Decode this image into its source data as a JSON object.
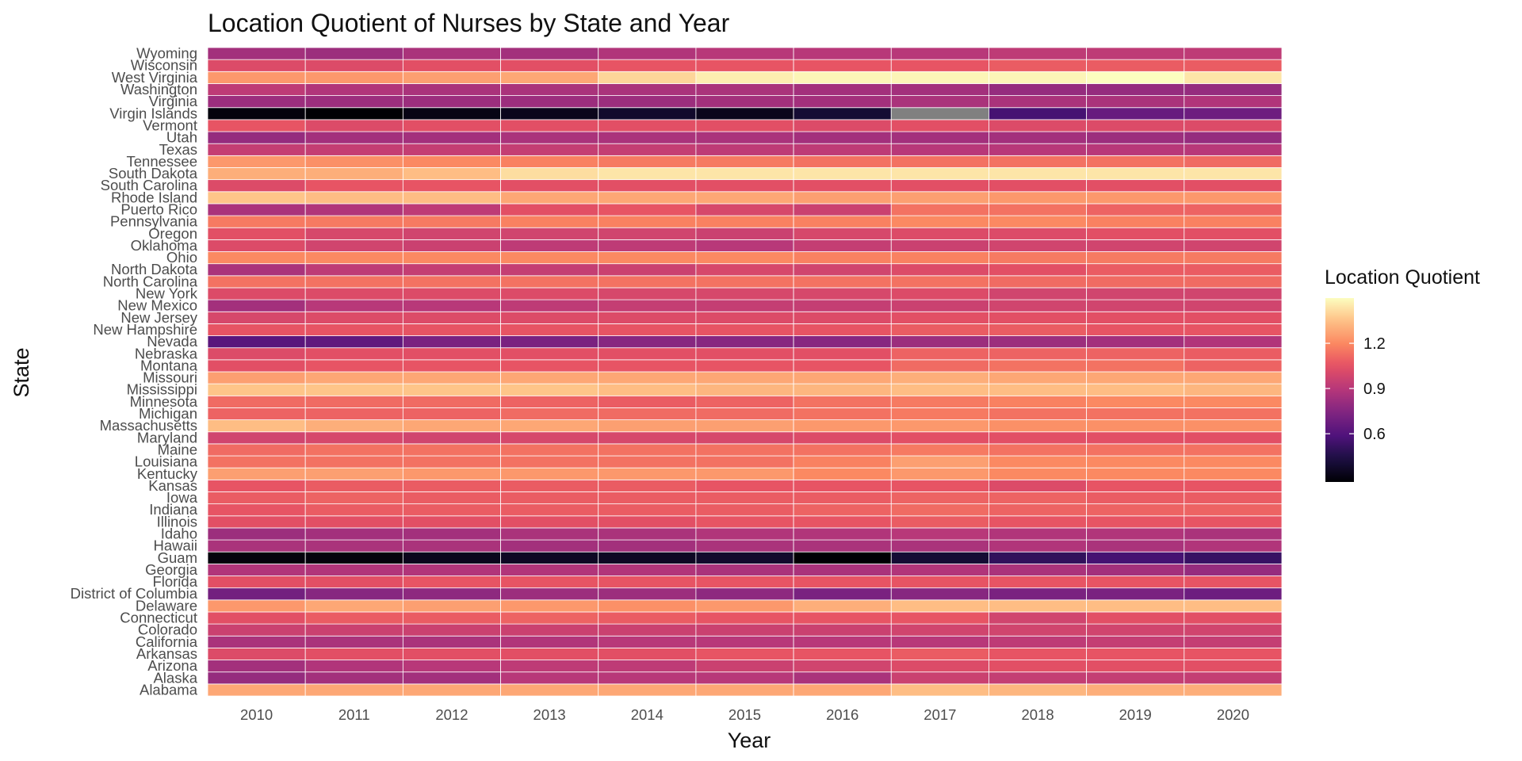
{
  "chart_data": {
    "type": "heatmap",
    "title": "Location Quotient of Nurses by State and Year",
    "xlabel": "Year",
    "ylabel": "State",
    "x": [
      "2010",
      "2011",
      "2012",
      "2013",
      "2014",
      "2015",
      "2016",
      "2017",
      "2018",
      "2019",
      "2020"
    ],
    "y": [
      "Alabama",
      "Alaska",
      "Arizona",
      "Arkansas",
      "California",
      "Colorado",
      "Connecticut",
      "Delaware",
      "District of Columbia",
      "Florida",
      "Georgia",
      "Guam",
      "Hawaii",
      "Idaho",
      "Illinois",
      "Indiana",
      "Iowa",
      "Kansas",
      "Kentucky",
      "Louisiana",
      "Maine",
      "Maryland",
      "Massachusetts",
      "Michigan",
      "Minnesota",
      "Mississippi",
      "Missouri",
      "Montana",
      "Nebraska",
      "Nevada",
      "New Hampshire",
      "New Jersey",
      "New Mexico",
      "New York",
      "North Carolina",
      "North Dakota",
      "Ohio",
      "Oklahoma",
      "Oregon",
      "Pennsylvania",
      "Puerto Rico",
      "Rhode Island",
      "South Carolina",
      "South Dakota",
      "Tennessee",
      "Texas",
      "Utah",
      "Vermont",
      "Virgin Islands",
      "Virginia",
      "Washington",
      "West Virginia",
      "Wisconsin",
      "Wyoming"
    ],
    "values": [
      [
        1.28,
        1.28,
        1.28,
        1.28,
        1.28,
        1.28,
        1.28,
        1.34,
        1.32,
        1.3,
        1.3
      ],
      [
        0.8,
        0.84,
        0.84,
        0.9,
        0.9,
        0.9,
        0.86,
        0.96,
        0.94,
        0.94,
        0.94
      ],
      [
        0.84,
        0.88,
        0.9,
        0.92,
        0.92,
        0.96,
        0.98,
        1.02,
        1.04,
        1.04,
        1.04
      ],
      [
        1.02,
        1.04,
        1.04,
        1.04,
        1.04,
        1.06,
        1.06,
        1.08,
        1.06,
        1.06,
        1.06
      ],
      [
        0.86,
        0.86,
        0.86,
        0.88,
        0.9,
        0.9,
        0.9,
        0.9,
        0.92,
        0.94,
        0.94
      ],
      [
        0.96,
        0.96,
        0.96,
        0.96,
        0.96,
        0.96,
        0.96,
        0.98,
        0.98,
        0.98,
        0.98
      ],
      [
        1.04,
        1.08,
        1.08,
        1.1,
        1.08,
        1.06,
        1.06,
        1.06,
        0.98,
        1.04,
        1.04
      ],
      [
        1.24,
        1.28,
        1.26,
        1.24,
        1.22,
        1.24,
        1.3,
        1.34,
        1.34,
        1.34,
        1.34
      ],
      [
        0.7,
        0.76,
        0.78,
        0.82,
        0.82,
        0.78,
        0.72,
        0.76,
        0.72,
        0.72,
        0.68
      ],
      [
        1.04,
        1.04,
        1.06,
        1.06,
        1.06,
        1.06,
        1.06,
        1.06,
        1.06,
        1.06,
        1.06
      ],
      [
        0.88,
        0.88,
        0.88,
        0.88,
        0.88,
        0.86,
        0.86,
        0.88,
        0.86,
        0.84,
        0.8
      ],
      [
        0.3,
        0.3,
        0.34,
        0.36,
        0.36,
        0.38,
        0.28,
        0.4,
        0.5,
        0.56,
        0.52
      ],
      [
        0.86,
        0.86,
        0.86,
        0.84,
        0.84,
        0.86,
        0.86,
        0.86,
        0.88,
        0.86,
        0.88
      ],
      [
        0.82,
        0.84,
        0.84,
        0.86,
        0.86,
        0.88,
        0.88,
        0.9,
        0.88,
        0.88,
        0.86
      ],
      [
        1.04,
        1.04,
        1.04,
        1.04,
        1.04,
        1.06,
        1.06,
        1.08,
        1.06,
        1.06,
        1.06
      ],
      [
        1.06,
        1.08,
        1.08,
        1.08,
        1.08,
        1.08,
        1.1,
        1.12,
        1.1,
        1.1,
        1.1
      ],
      [
        1.08,
        1.1,
        1.08,
        1.08,
        1.08,
        1.08,
        1.08,
        1.1,
        1.1,
        1.08,
        1.08
      ],
      [
        1.06,
        1.08,
        1.08,
        1.08,
        1.08,
        1.06,
        1.06,
        1.06,
        1.02,
        1.06,
        1.06
      ],
      [
        1.26,
        1.26,
        1.24,
        1.24,
        1.24,
        1.24,
        1.2,
        1.24,
        1.2,
        1.2,
        1.2
      ],
      [
        1.14,
        1.14,
        1.14,
        1.14,
        1.14,
        1.14,
        1.18,
        1.26,
        1.2,
        1.2,
        1.2
      ],
      [
        1.12,
        1.14,
        1.14,
        1.14,
        1.14,
        1.14,
        1.14,
        1.16,
        1.14,
        1.14,
        1.14
      ],
      [
        0.98,
        1.0,
        0.98,
        1.0,
        1.0,
        1.0,
        1.02,
        1.04,
        1.04,
        1.04,
        1.04
      ],
      [
        1.34,
        1.3,
        1.28,
        1.28,
        1.26,
        1.26,
        1.24,
        1.24,
        1.22,
        1.22,
        1.22
      ],
      [
        1.1,
        1.1,
        1.1,
        1.12,
        1.12,
        1.12,
        1.14,
        1.16,
        1.14,
        1.14,
        1.14
      ],
      [
        1.12,
        1.12,
        1.12,
        1.1,
        1.08,
        1.1,
        1.14,
        1.16,
        1.18,
        1.2,
        1.2
      ],
      [
        1.36,
        1.36,
        1.36,
        1.36,
        1.34,
        1.32,
        1.32,
        1.34,
        1.34,
        1.34,
        1.32
      ],
      [
        1.26,
        1.28,
        1.28,
        1.28,
        1.28,
        1.28,
        1.28,
        1.3,
        1.28,
        1.28,
        1.28
      ],
      [
        1.04,
        1.06,
        1.06,
        1.06,
        1.06,
        1.06,
        1.06,
        1.12,
        1.14,
        1.14,
        1.1
      ],
      [
        1.02,
        1.04,
        1.04,
        1.04,
        1.04,
        1.04,
        1.04,
        1.1,
        1.1,
        1.1,
        1.08
      ],
      [
        0.62,
        0.64,
        0.72,
        0.72,
        0.76,
        0.76,
        0.76,
        0.82,
        0.82,
        0.84,
        0.88
      ],
      [
        1.06,
        1.06,
        1.06,
        1.06,
        1.06,
        1.06,
        1.06,
        1.08,
        1.08,
        1.06,
        1.06
      ],
      [
        1.0,
        1.02,
        1.02,
        1.02,
        1.02,
        1.02,
        1.02,
        1.04,
        1.04,
        1.04,
        1.04
      ],
      [
        0.84,
        0.9,
        0.9,
        0.92,
        0.94,
        0.94,
        0.94,
        0.96,
        0.98,
        0.98,
        0.98
      ],
      [
        1.02,
        1.02,
        1.02,
        1.02,
        1.0,
        1.0,
        1.0,
        1.02,
        0.98,
        0.98,
        0.98
      ],
      [
        1.14,
        1.14,
        1.14,
        1.14,
        1.14,
        1.14,
        1.14,
        1.14,
        1.12,
        1.12,
        1.12
      ],
      [
        0.86,
        0.92,
        0.94,
        0.94,
        0.96,
        1.0,
        0.98,
        1.02,
        1.04,
        1.08,
        1.08
      ],
      [
        1.2,
        1.2,
        1.2,
        1.2,
        1.2,
        1.2,
        1.18,
        1.18,
        1.16,
        1.16,
        1.16
      ],
      [
        1.02,
        0.98,
        0.96,
        0.92,
        0.92,
        0.9,
        0.94,
        0.96,
        0.98,
        0.98,
        0.98
      ],
      [
        1.04,
        1.0,
        0.98,
        0.98,
        0.98,
        0.96,
        1.0,
        1.02,
        1.02,
        1.04,
        1.04
      ],
      [
        1.16,
        1.16,
        1.16,
        1.18,
        1.18,
        1.18,
        1.18,
        1.2,
        1.2,
        1.18,
        1.18
      ],
      [
        0.86,
        0.88,
        0.92,
        1.04,
        1.06,
        1.0,
        0.96,
        1.14,
        1.14,
        1.1,
        1.1
      ],
      [
        1.36,
        1.34,
        1.34,
        1.28,
        1.28,
        1.28,
        1.26,
        1.26,
        1.24,
        1.24,
        1.24
      ],
      [
        1.02,
        1.06,
        1.06,
        1.04,
        1.04,
        1.04,
        1.04,
        1.04,
        1.04,
        1.04,
        1.04
      ],
      [
        1.3,
        1.3,
        1.34,
        1.42,
        1.44,
        1.44,
        1.44,
        1.44,
        1.44,
        1.44,
        1.44
      ],
      [
        1.24,
        1.22,
        1.2,
        1.18,
        1.16,
        1.16,
        1.14,
        1.14,
        1.14,
        1.14,
        1.12
      ],
      [
        0.94,
        0.94,
        0.94,
        0.94,
        0.94,
        0.92,
        0.92,
        0.9,
        0.9,
        0.9,
        0.9
      ],
      [
        0.8,
        0.84,
        0.84,
        0.86,
        0.86,
        0.86,
        0.84,
        0.84,
        0.84,
        0.82,
        0.8
      ],
      [
        1.06,
        1.02,
        1.04,
        1.04,
        1.04,
        1.04,
        1.02,
        1.04,
        1.02,
        1.02,
        1.02
      ],
      [
        0.3,
        0.28,
        0.32,
        0.34,
        0.38,
        0.34,
        0.4,
        null,
        0.56,
        0.66,
        0.68
      ],
      [
        0.82,
        0.82,
        0.82,
        0.82,
        0.82,
        0.84,
        0.84,
        0.86,
        0.86,
        0.86,
        0.88
      ],
      [
        0.92,
        0.88,
        0.86,
        0.86,
        0.86,
        0.86,
        0.84,
        0.84,
        0.8,
        0.8,
        0.8
      ],
      [
        1.24,
        1.24,
        1.26,
        1.28,
        1.4,
        1.46,
        1.48,
        1.48,
        1.48,
        1.5,
        1.44
      ],
      [
        1.02,
        1.02,
        1.04,
        1.04,
        1.06,
        1.06,
        1.06,
        1.06,
        1.08,
        1.08,
        1.08
      ],
      [
        0.84,
        0.82,
        0.86,
        0.84,
        0.88,
        0.9,
        0.9,
        0.9,
        0.92,
        0.92,
        0.92
      ]
    ],
    "na_color": "#808080",
    "colorscale": "magma",
    "color_range": [
      0.28,
      1.5
    ],
    "legend": {
      "title": "Location Quotient",
      "ticks": [
        0.6,
        0.9,
        1.2
      ],
      "tick_labels": [
        "0.6",
        "0.9",
        "1.2"
      ],
      "position": "right"
    },
    "grid": true
  }
}
